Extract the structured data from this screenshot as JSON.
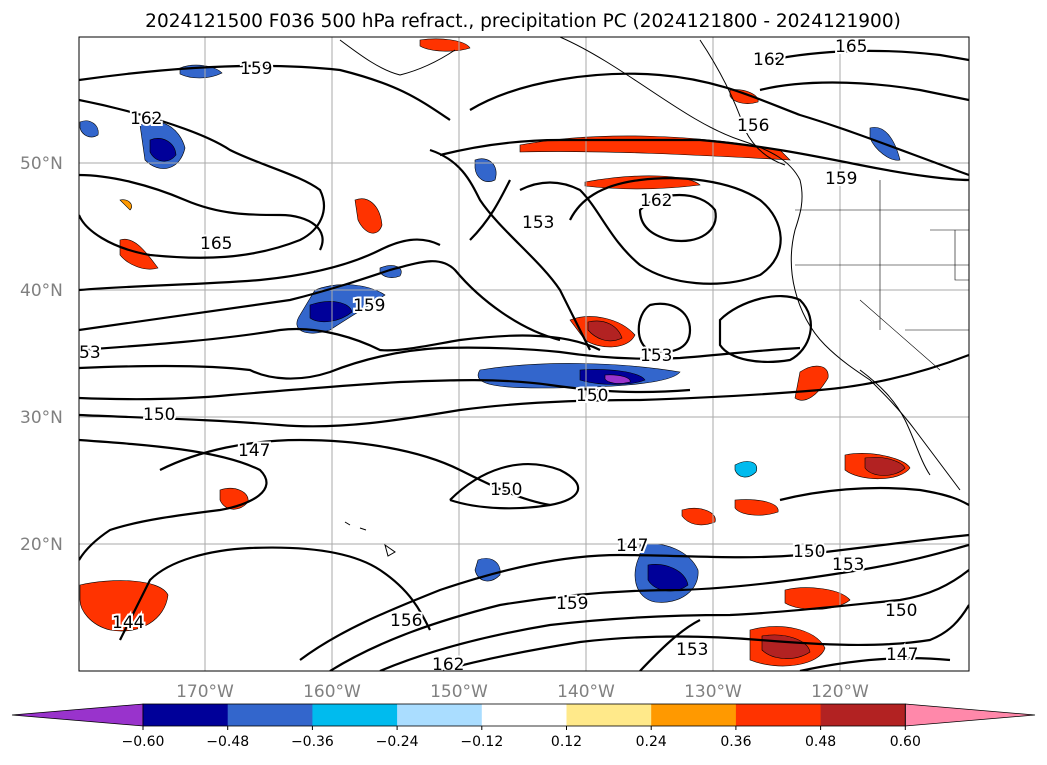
{
  "title": "2024121500 F036 500 hPa refract., precipitation PC (2024121800 - 2024121900)",
  "map": {
    "lat_labels": [
      "50°N",
      "40°N",
      "30°N",
      "20°N"
    ],
    "lon_labels": [
      "170°W",
      "160°W",
      "150°W",
      "140°W",
      "130°W",
      "120°W"
    ],
    "contour_labels": [
      "165",
      "162",
      "159",
      "162",
      "156",
      "162",
      "159",
      "153",
      "165",
      "159",
      "53",
      "153",
      "150",
      "150",
      "147",
      "150",
      "147",
      "150",
      "153",
      "144",
      "156",
      "162",
      "159",
      "153",
      "150",
      "147"
    ]
  },
  "colorbar": {
    "levels": [
      "−0.60",
      "−0.48",
      "−0.36",
      "−0.24",
      "−0.12",
      "0.12",
      "0.24",
      "0.36",
      "0.48",
      "0.60"
    ],
    "colors": [
      "#9933cc",
      "#000099",
      "#3366cc",
      "#00bbee",
      "#aaddff",
      "#ffffff",
      "#ffe98a",
      "#ff9900",
      "#ff3300",
      "#b22222",
      "#ff88aa"
    ]
  },
  "legend_colors": {
    "contour": "#000000",
    "coast": "#000000",
    "grid": "#aaaaaa"
  }
}
